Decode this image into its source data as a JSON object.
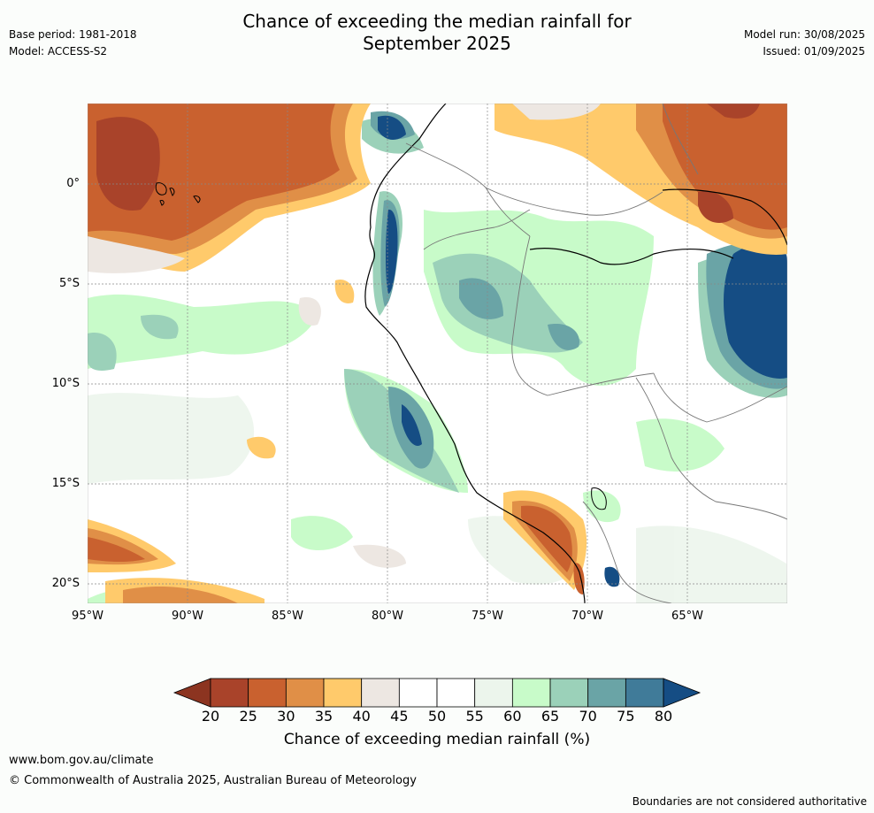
{
  "title": {
    "line1": "Chance of exceeding the median rainfall for",
    "line2": "September 2025"
  },
  "meta": {
    "base_period": "Base period: 1981-2018",
    "model": "Model: ACCESS-S2",
    "model_run": "Model run: 30/08/2025",
    "issued": "Issued: 01/09/2025"
  },
  "map": {
    "lat_labels": [
      "0°",
      "5°S",
      "10°S",
      "15°S",
      "20°S"
    ],
    "lon_labels": [
      "95°W",
      "90°W",
      "85°W",
      "80°W",
      "75°W",
      "70°W",
      "65°W"
    ]
  },
  "legend": {
    "ticks": [
      "20",
      "25",
      "30",
      "35",
      "40",
      "45",
      "50",
      "55",
      "60",
      "65",
      "70",
      "75",
      "80"
    ],
    "colors": [
      "#a9432a",
      "#c9612f",
      "#e08f47",
      "#ffca6b",
      "#ede7e2",
      "#ffffff",
      "#ffffff",
      "#ecf5ec",
      "#c8fbc9",
      "#9bd1b9",
      "#6aa4a6",
      "#407b99",
      "#154d84"
    ],
    "caption": "Chance of exceeding median rainfall (%)"
  },
  "footer": {
    "url": "www.bom.gov.au/climate",
    "copyright": "© Commonwealth of Australia 2025, Australian Bureau of Meteorology",
    "disclaimer": "Boundaries are not considered authoritative"
  }
}
